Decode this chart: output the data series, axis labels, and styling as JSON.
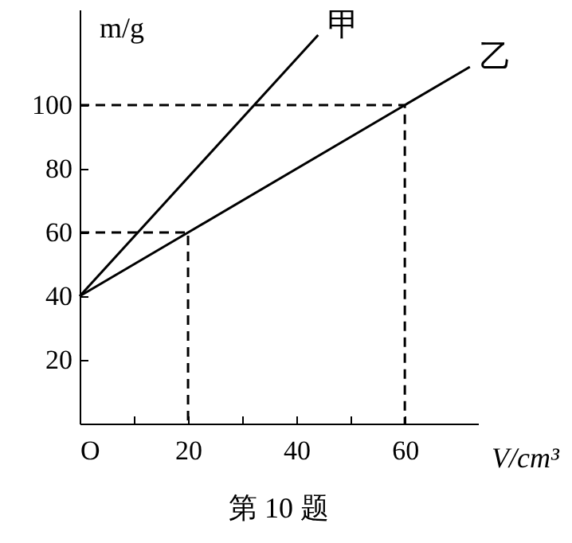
{
  "chart_data": {
    "type": "line",
    "title": "第 10 题",
    "xlabel": "V/cm³",
    "ylabel": "m/g",
    "xlim": [
      0,
      73.5
    ],
    "ylim": [
      0,
      130
    ],
    "xticks": [
      {
        "value": 0,
        "label": "O"
      },
      {
        "value": 10,
        "label": null
      },
      20,
      {
        "value": 30,
        "label": null
      },
      40,
      {
        "value": 50,
        "label": null
      },
      60
    ],
    "yticks": [
      20,
      40,
      60,
      80,
      100
    ],
    "grid": false,
    "marker": "none",
    "series": [
      {
        "name": "甲",
        "color": "#000000",
        "x": [
          0,
          44
        ],
        "values": [
          40,
          122
        ],
        "line_style": "solid"
      },
      {
        "name": "乙",
        "color": "#000000",
        "x": [
          0,
          20,
          60,
          72
        ],
        "values": [
          40,
          60,
          100,
          112
        ],
        "line_style": "solid"
      },
      {
        "color": "#000000",
        "x": [
          0,
          20,
          20
        ],
        "values": [
          60,
          60,
          0
        ],
        "line_style": "dashed"
      },
      {
        "color": "#000000",
        "x": [
          0,
          60,
          60
        ],
        "values": [
          100,
          100,
          0
        ],
        "line_style": "dashed"
      }
    ]
  }
}
